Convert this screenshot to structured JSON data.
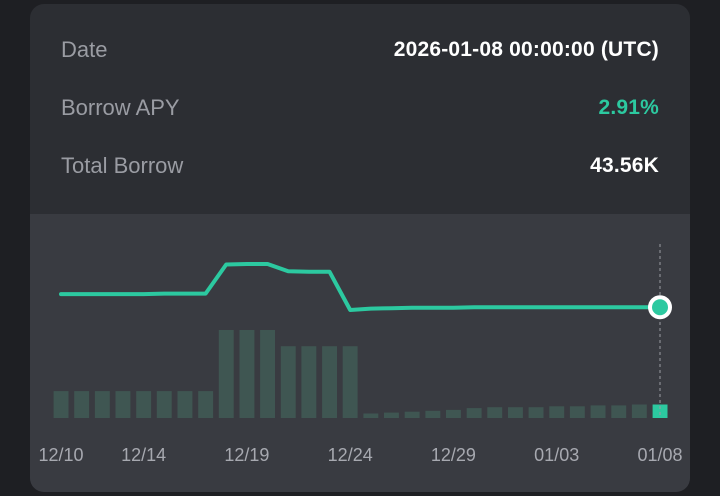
{
  "info": {
    "date_label": "Date",
    "date_value": "2026-01-08 00:00:00 (UTC)",
    "apy_label": "Borrow APY",
    "apy_value": "2.91%",
    "borrow_label": "Total Borrow",
    "borrow_value": "43.56K"
  },
  "colors": {
    "accent": "#2cc9a0",
    "bar": "#3f5652",
    "bar_active": "#2cc9a0",
    "card": "#2c2e33",
    "chart_bg": "#393b41"
  },
  "chart_data": {
    "type": "line",
    "categories": [
      "12/10",
      "12/11",
      "12/12",
      "12/13",
      "12/14",
      "12/15",
      "12/16",
      "12/17",
      "12/18",
      "12/19",
      "12/20",
      "12/21",
      "12/22",
      "12/23",
      "12/24",
      "12/25",
      "12/26",
      "12/27",
      "12/28",
      "12/29",
      "12/30",
      "12/31",
      "01/01",
      "01/02",
      "01/03",
      "01/04",
      "01/05",
      "01/06",
      "01/07",
      "01/08"
    ],
    "tick_labels": [
      "12/10",
      "12/14",
      "12/19",
      "12/24",
      "12/29",
      "01/03",
      "01/08"
    ],
    "series": [
      {
        "kind": "line",
        "values": [
          3.2,
          3.2,
          3.2,
          3.2,
          3.2,
          3.21,
          3.21,
          3.21,
          3.85,
          3.86,
          3.86,
          3.7,
          3.69,
          3.69,
          2.85,
          2.88,
          2.89,
          2.9,
          2.9,
          2.9,
          2.91,
          2.91,
          2.91,
          2.91,
          2.91,
          2.91,
          2.91,
          2.91,
          2.91,
          2.91
        ]
      },
      {
        "kind": "bar",
        "values": [
          30,
          30,
          30,
          30,
          30,
          30,
          30,
          30,
          98,
          98,
          98,
          80,
          80,
          80,
          80,
          5,
          6,
          7,
          8,
          9,
          11,
          12,
          12,
          12,
          13,
          13,
          14,
          14,
          15,
          15
        ]
      }
    ],
    "highlight_category": "01/08"
  }
}
